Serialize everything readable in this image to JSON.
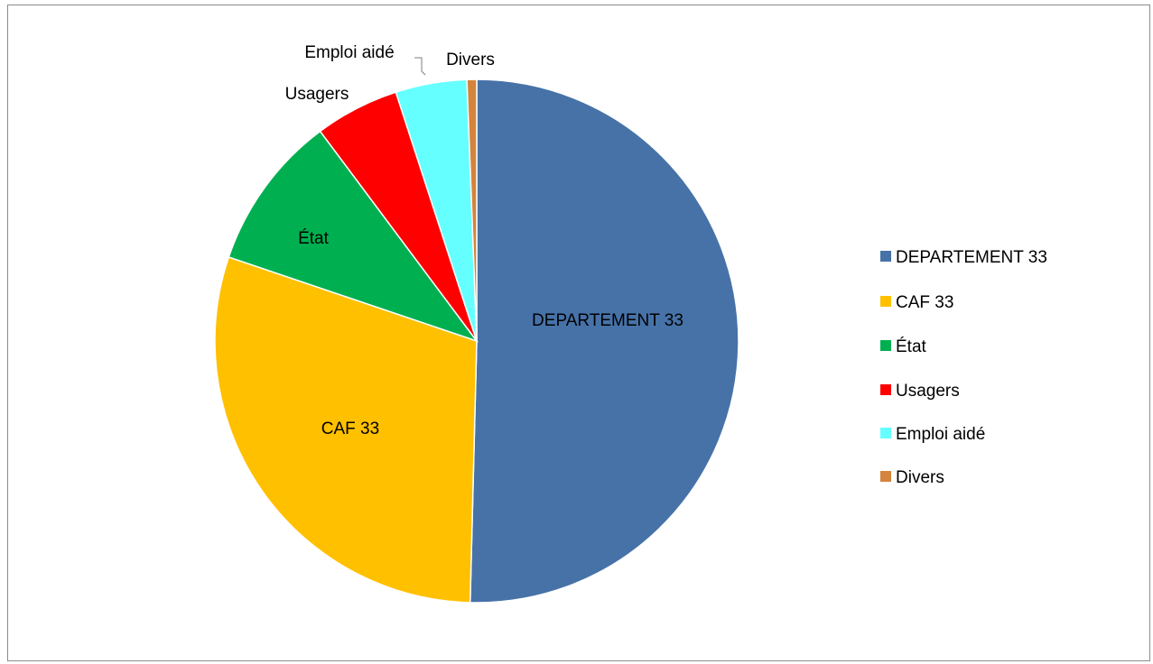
{
  "chart_data": {
    "type": "pie",
    "categories": [
      "DEPARTEMENT 33",
      "CAF 33",
      "État",
      "Usagers",
      "Emploi aidé",
      "Divers"
    ],
    "values": [
      50.4,
      29.8,
      9.6,
      5.2,
      4.4,
      0.6
    ],
    "colors": [
      "#4672A8",
      "#FFC000",
      "#00B050",
      "#FF0000",
      "#66FFFF",
      "#D4843C"
    ],
    "data_labels": [
      "DEPARTEMENT 33",
      "CAF 33",
      "État",
      "Usagers",
      "Emploi aidé",
      "Divers"
    ],
    "legend": {
      "position": "right",
      "entries": [
        "DEPARTEMENT 33",
        "CAF 33",
        "État",
        "Usagers",
        "Emploi aidé",
        "Divers"
      ]
    },
    "start_angle": "12 o'clock",
    "direction": "clockwise",
    "title": ""
  }
}
